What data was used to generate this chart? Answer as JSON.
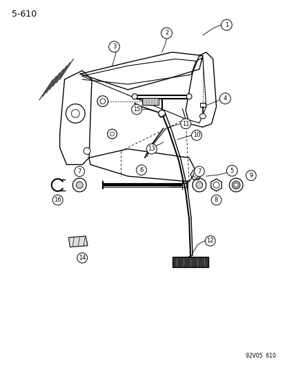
{
  "page_number": "5-610",
  "doc_code": "92V05  610",
  "background_color": "#ffffff",
  "line_color": "#000000",
  "figsize": [
    4.14,
    5.33
  ],
  "dpi": 100
}
